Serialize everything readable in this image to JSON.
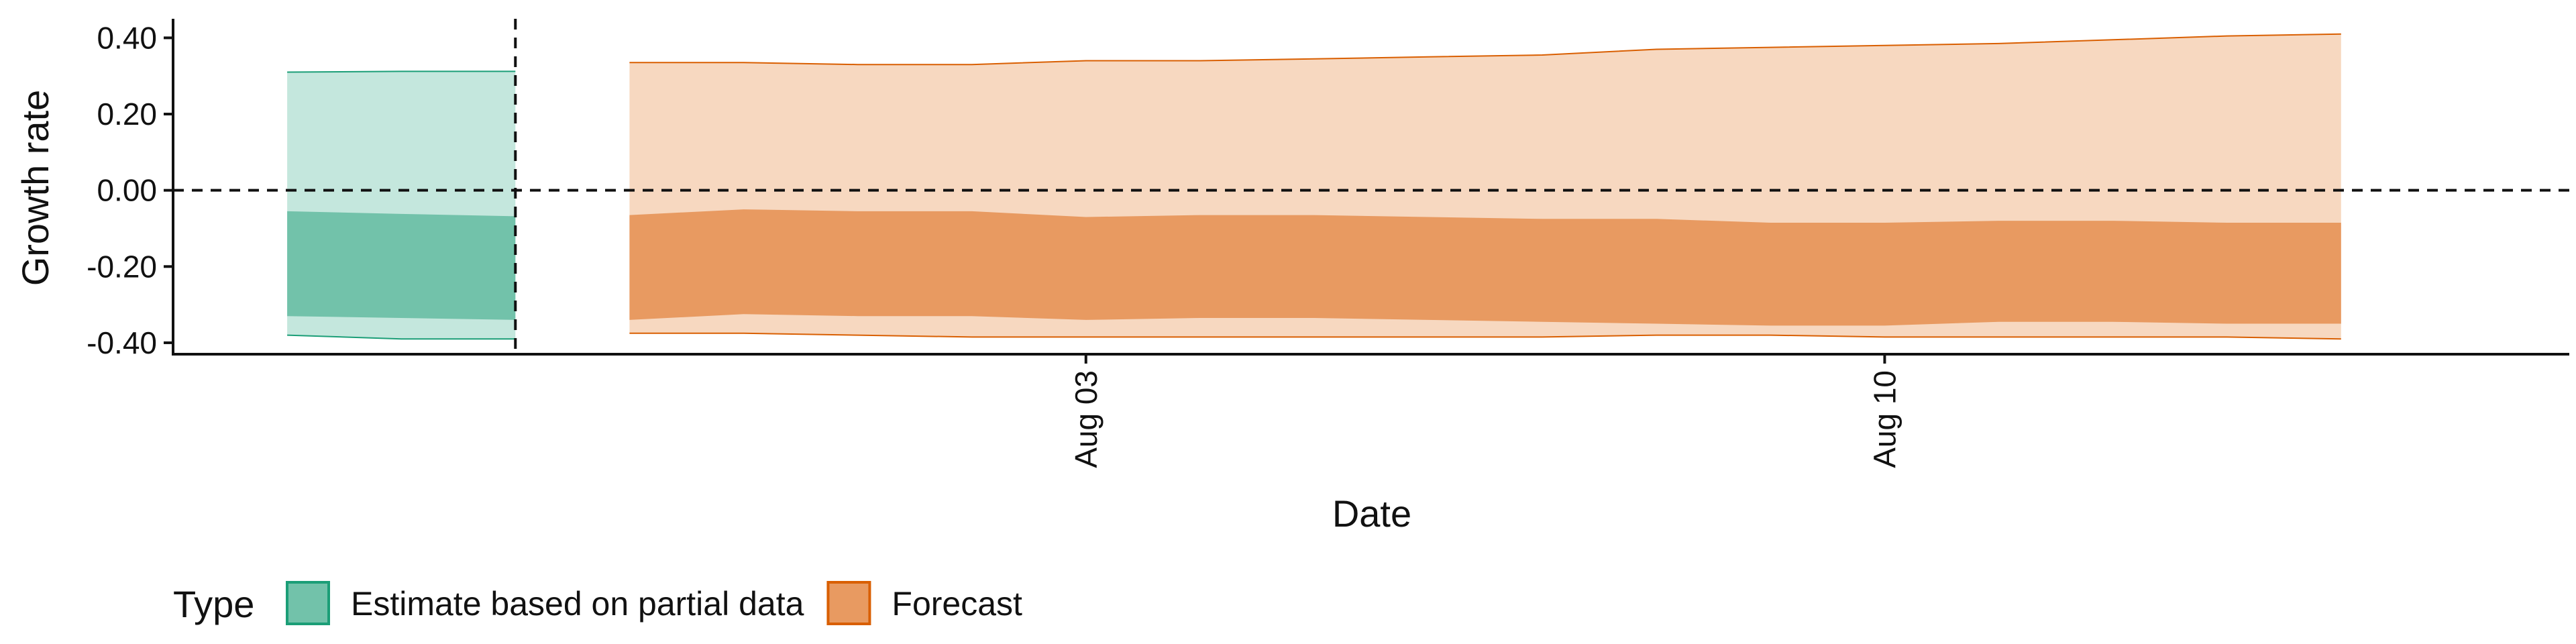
{
  "chart_data": {
    "type": "area",
    "xlabel": "Date",
    "ylabel": "Growth rate",
    "ylim": [
      -0.43,
      0.45
    ],
    "xlim": [
      "2022-07-26",
      "2022-08-16"
    ],
    "y_ticks": [
      -0.4,
      -0.2,
      0.0,
      0.2,
      0.4
    ],
    "y_tick_labels": [
      "-0.40",
      "-0.20",
      "0.00",
      "0.20",
      "0.40"
    ],
    "x_ticks": [
      "2022-08-03",
      "2022-08-10"
    ],
    "x_tick_labels": [
      "Aug 03",
      "Aug 10"
    ],
    "reference_lines": [
      {
        "axis": "y",
        "value": 0.0,
        "style": "dashed"
      },
      {
        "axis": "x",
        "value": "2022-07-29",
        "style": "dashed"
      }
    ],
    "grid": false,
    "legend": {
      "title": "Type",
      "position": "bottom-left",
      "entries": [
        "Estimate based on partial data",
        "Forecast"
      ]
    },
    "series": [
      {
        "name": "Estimate based on partial data",
        "color": "#1b9e77",
        "outer_fill": "#c4e7dd",
        "inner_fill": "#72c2aa",
        "x": [
          "2022-07-27",
          "2022-07-28",
          "2022-07-29"
        ],
        "lower90": [
          -0.38,
          -0.39,
          -0.39
        ],
        "lower50": [
          -0.33,
          -0.335,
          -0.34
        ],
        "upper50": [
          -0.055,
          -0.062,
          -0.068
        ],
        "upper90": [
          0.31,
          0.312,
          0.312
        ]
      },
      {
        "name": "Forecast",
        "color": "#d95f02",
        "outer_fill": "#f7d8c0",
        "inner_fill": "#e89a61",
        "x": [
          "2022-07-30",
          "2022-07-31",
          "2022-08-01",
          "2022-08-02",
          "2022-08-03",
          "2022-08-04",
          "2022-08-05",
          "2022-08-06",
          "2022-08-07",
          "2022-08-08",
          "2022-08-09",
          "2022-08-10",
          "2022-08-11",
          "2022-08-12",
          "2022-08-13",
          "2022-08-14"
        ],
        "lower90": [
          -0.375,
          -0.375,
          -0.38,
          -0.385,
          -0.385,
          -0.385,
          -0.385,
          -0.385,
          -0.385,
          -0.38,
          -0.38,
          -0.385,
          -0.385,
          -0.385,
          -0.385,
          -0.39
        ],
        "lower50": [
          -0.34,
          -0.325,
          -0.33,
          -0.33,
          -0.34,
          -0.335,
          -0.335,
          -0.34,
          -0.345,
          -0.35,
          -0.355,
          -0.355,
          -0.345,
          -0.345,
          -0.35,
          -0.35
        ],
        "upper50": [
          -0.065,
          -0.05,
          -0.055,
          -0.055,
          -0.07,
          -0.065,
          -0.065,
          -0.07,
          -0.075,
          -0.075,
          -0.085,
          -0.085,
          -0.08,
          -0.08,
          -0.085,
          -0.085
        ],
        "upper90": [
          0.335,
          0.335,
          0.33,
          0.33,
          0.34,
          0.34,
          0.345,
          0.35,
          0.355,
          0.37,
          0.375,
          0.38,
          0.385,
          0.395,
          0.405,
          0.41
        ]
      }
    ]
  }
}
